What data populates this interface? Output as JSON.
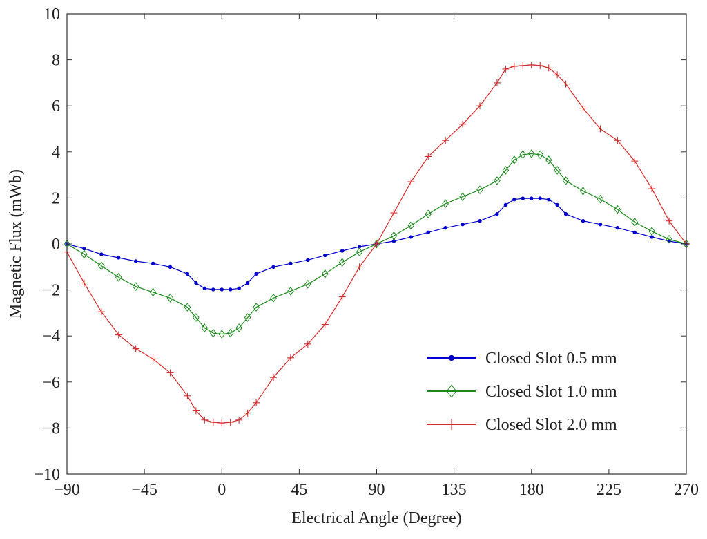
{
  "chart_data": {
    "type": "line",
    "title": "",
    "xlabel": "Electrical Angle (Degree)",
    "ylabel": "Magnetic Flux (mWb)",
    "xlim": [
      -90,
      270
    ],
    "ylim": [
      -10,
      10
    ],
    "xticks": [
      -90,
      -45,
      0,
      45,
      90,
      135,
      180,
      225,
      270
    ],
    "xtick_labels": [
      "−90",
      "−45",
      "0",
      "45",
      "90",
      "135",
      "180",
      "225",
      "270"
    ],
    "yticks": [
      -10,
      -8,
      -6,
      -4,
      -2,
      0,
      2,
      4,
      6,
      8,
      10
    ],
    "ytick_labels": [
      "−10",
      "−8",
      "−6",
      "−4",
      "−2",
      "0",
      "2",
      "4",
      "6",
      "8",
      "10"
    ],
    "grid": false,
    "legend_position": "bottom-right",
    "x": [
      -90,
      -80,
      -70,
      -60,
      -50,
      -40,
      -30,
      -20,
      -15,
      -10,
      -5,
      0,
      5,
      10,
      15,
      20,
      30,
      40,
      50,
      60,
      70,
      80,
      90,
      100,
      110,
      120,
      130,
      140,
      150,
      160,
      165,
      170,
      175,
      180,
      185,
      190,
      195,
      200,
      210,
      220,
      230,
      240,
      250,
      260,
      270
    ],
    "series": [
      {
        "name": "Closed Slot 0.5 mm",
        "color": "#0000cc",
        "marker": "dot",
        "values": [
          0,
          -0.2,
          -0.45,
          -0.6,
          -0.75,
          -0.85,
          -1.0,
          -1.3,
          -1.7,
          -1.93,
          -1.98,
          -1.98,
          -1.98,
          -1.93,
          -1.7,
          -1.3,
          -1.0,
          -0.85,
          -0.7,
          -0.5,
          -0.3,
          -0.12,
          0,
          0.12,
          0.3,
          0.5,
          0.7,
          0.85,
          1.0,
          1.3,
          1.7,
          1.93,
          1.98,
          1.98,
          1.98,
          1.93,
          1.7,
          1.3,
          1.0,
          0.85,
          0.7,
          0.5,
          0.3,
          0.12,
          0
        ]
      },
      {
        "name": "Closed Slot 1.0 mm",
        "color": "#1a8a1a",
        "marker": "diamond",
        "values": [
          0,
          -0.45,
          -0.95,
          -1.45,
          -1.85,
          -2.1,
          -2.35,
          -2.75,
          -3.2,
          -3.65,
          -3.88,
          -3.92,
          -3.88,
          -3.65,
          -3.2,
          -2.75,
          -2.35,
          -2.05,
          -1.75,
          -1.3,
          -0.8,
          -0.35,
          0,
          0.35,
          0.8,
          1.3,
          1.75,
          2.05,
          2.35,
          2.75,
          3.2,
          3.65,
          3.88,
          3.92,
          3.88,
          3.65,
          3.2,
          2.75,
          2.3,
          1.95,
          1.5,
          0.95,
          0.55,
          0.2,
          0
        ]
      },
      {
        "name": "Closed Slot 2.0 mm",
        "color": "#d42a2a",
        "marker": "plus",
        "values": [
          -0.35,
          -1.7,
          -2.95,
          -3.95,
          -4.55,
          -5.0,
          -5.6,
          -6.6,
          -7.25,
          -7.65,
          -7.75,
          -7.78,
          -7.75,
          -7.65,
          -7.35,
          -6.9,
          -5.8,
          -4.95,
          -4.35,
          -3.5,
          -2.3,
          -1.0,
          0,
          1.35,
          2.7,
          3.8,
          4.5,
          5.2,
          6.0,
          7.0,
          7.6,
          7.72,
          7.75,
          7.78,
          7.75,
          7.65,
          7.35,
          6.95,
          5.9,
          5.0,
          4.5,
          3.6,
          2.4,
          1.0,
          0
        ]
      }
    ]
  }
}
